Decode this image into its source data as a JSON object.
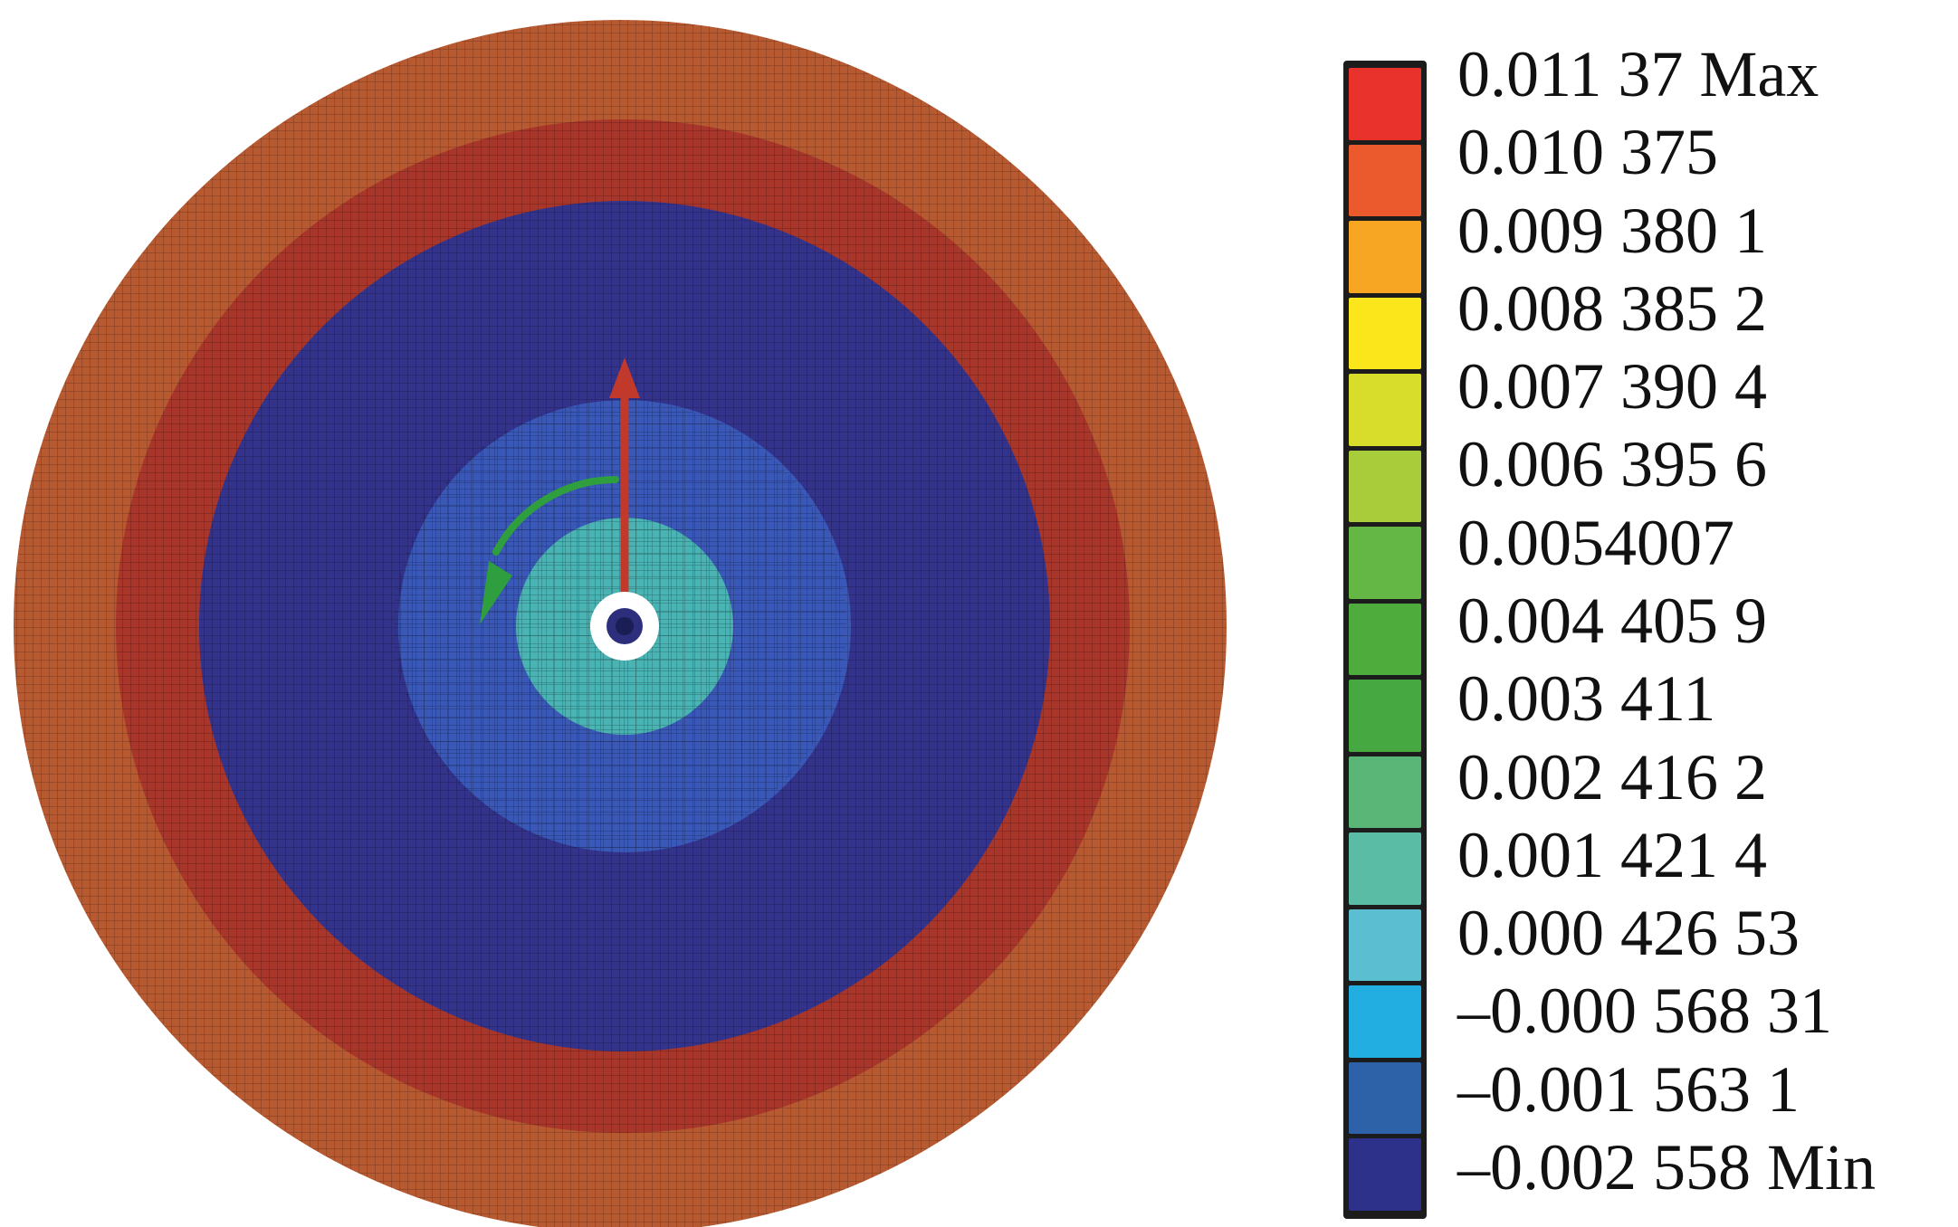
{
  "legend": {
    "colors": [
      "#e8322b",
      "#eb5a2c",
      "#f6a623",
      "#fae61b",
      "#d8dc2a",
      "#a9cd3a",
      "#64b744",
      "#4dac3c",
      "#46a840",
      "#5ab677",
      "#5bbca5",
      "#5bbfd1",
      "#23aee2",
      "#2d62a8",
      "#2d318a"
    ],
    "labels": [
      "0.011 37 Max",
      "0.010 375",
      "0.009 380 1",
      "0.008 385 2",
      "0.007 390 4",
      "0.006 395 6",
      "0.0054007",
      "0.004 405 9",
      "0.003 411",
      "0.002 416 2",
      "0.001 421 4",
      "0.000 426 53",
      "–0.000 568 31",
      "–0.001 563 1",
      "–0.002 558 Min"
    ]
  },
  "contour": {
    "bands_outer_to_inner": [
      {
        "color": "#b85a31"
      },
      {
        "color": "#a8362a"
      },
      {
        "color": "#33338c"
      },
      {
        "color": "#3a58b8"
      },
      {
        "color": "#4ab3b3"
      }
    ]
  },
  "glyphs": {
    "arrow_color": "#c0392b",
    "rotation_color": "#2e9e3e",
    "center_ring_color": "#ffffff"
  }
}
